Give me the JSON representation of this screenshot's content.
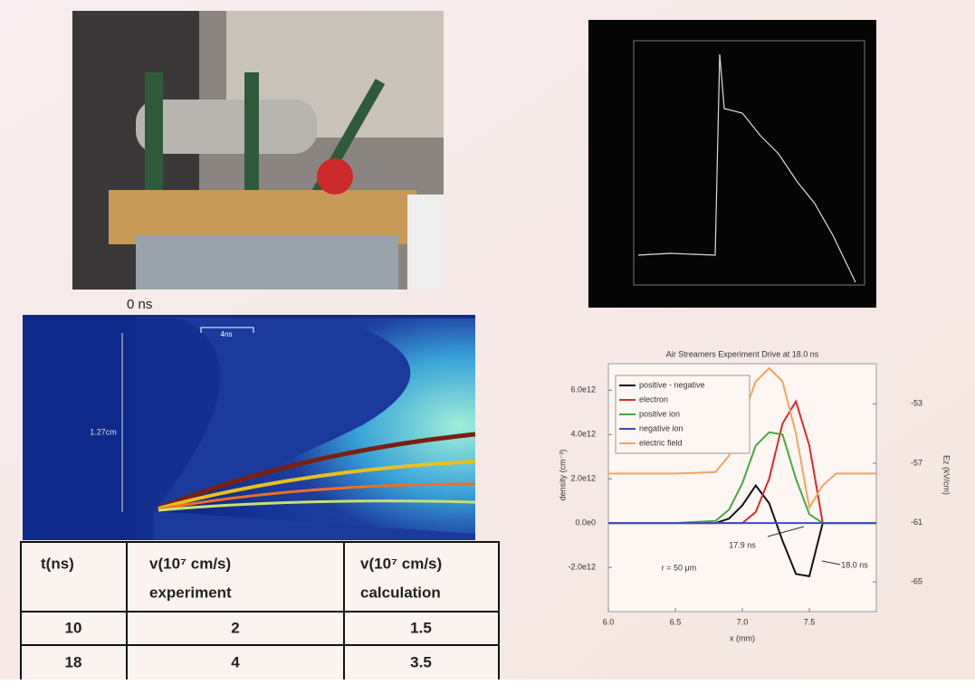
{
  "photo_label": "0 ns",
  "streak": {
    "scale_label": "4ns",
    "height_label": "1.27cm"
  },
  "table": {
    "header": [
      {
        "line1": "t(ns)"
      },
      {
        "line1": "v(10⁷ cm/s)",
        "line2": "experiment"
      },
      {
        "line1": "v(10⁷ cm/s)",
        "line2": "calculation"
      }
    ],
    "rows": [
      [
        "10",
        "2",
        "1.5"
      ],
      [
        "18",
        "4",
        "3.5"
      ]
    ]
  },
  "chart_data": {
    "type": "line",
    "title": "Air Streamers Experiment Drive at 18.0 ns",
    "x_label": "x (mm)",
    "y_label": "density (cm⁻³)",
    "y2_label": "Ez (kV/cm)",
    "x": [
      6.0,
      6.5,
      6.8,
      6.9,
      7.0,
      7.1,
      7.2,
      7.3,
      7.4,
      7.5,
      7.6,
      7.7,
      8.0
    ],
    "series": [
      {
        "name": "positive - negative",
        "color": "#111111",
        "values": [
          0,
          0,
          0,
          200000000000.0,
          800000000000.0,
          1700000000000.0,
          900000000000.0,
          -800000000000.0,
          -2300000000000.0,
          -2400000000000.0,
          0,
          0,
          0
        ]
      },
      {
        "name": "electron",
        "color": "#e0282a",
        "values": [
          0,
          0,
          0,
          0,
          0,
          500000000000.0,
          2000000000000.0,
          4500000000000.0,
          5500000000000.0,
          3500000000000.0,
          0,
          0,
          0
        ]
      },
      {
        "name": "positive ion",
        "color": "#45a845",
        "values": [
          0,
          0,
          100000000000.0,
          600000000000.0,
          1800000000000.0,
          3500000000000.0,
          4100000000000.0,
          4000000000000.0,
          2000000000000.0,
          400000000000.0,
          0,
          0,
          0
        ]
      },
      {
        "name": "negative ion",
        "color": "#3b4fb8",
        "values": [
          0,
          0,
          0,
          0,
          0,
          0,
          0,
          0,
          0,
          0,
          0,
          0,
          0
        ]
      },
      {
        "name": "electric field",
        "color": "#f4a460",
        "axis": "y2",
        "values": [
          -57.7,
          -57.7,
          -57.6,
          -56.5,
          -54,
          -51.5,
          -50.6,
          -51.5,
          -55,
          -60,
          -58.5,
          -57.7,
          -57.7
        ]
      }
    ],
    "xlim": [
      6.0,
      8.0
    ],
    "xticks": [
      {
        "value": 6.0,
        "label": "6.0"
      },
      {
        "value": 6.5,
        "label": "6.5"
      },
      {
        "value": 7.0,
        "label": "7.0"
      },
      {
        "value": 7.5,
        "label": "7.5"
      }
    ],
    "ylim": [
      -4000000000000.0,
      7200000000000.0
    ],
    "yticks": [
      {
        "value": 6000000000000.0,
        "label": "6.0e12"
      },
      {
        "value": 4000000000000.0,
        "label": "4.0e12"
      },
      {
        "value": 2000000000000.0,
        "label": "2.0e12"
      },
      {
        "value": 0,
        "label": "0.0e0"
      },
      {
        "value": -2000000000000.0,
        "label": "-2.0e12"
      }
    ],
    "y2lim": [
      -67,
      -50.3
    ],
    "y2ticks": [
      -53,
      -57,
      -61,
      -65
    ],
    "annotations": [
      "17.9 ns",
      "18.0 ns",
      "r = 50 μm"
    ]
  }
}
